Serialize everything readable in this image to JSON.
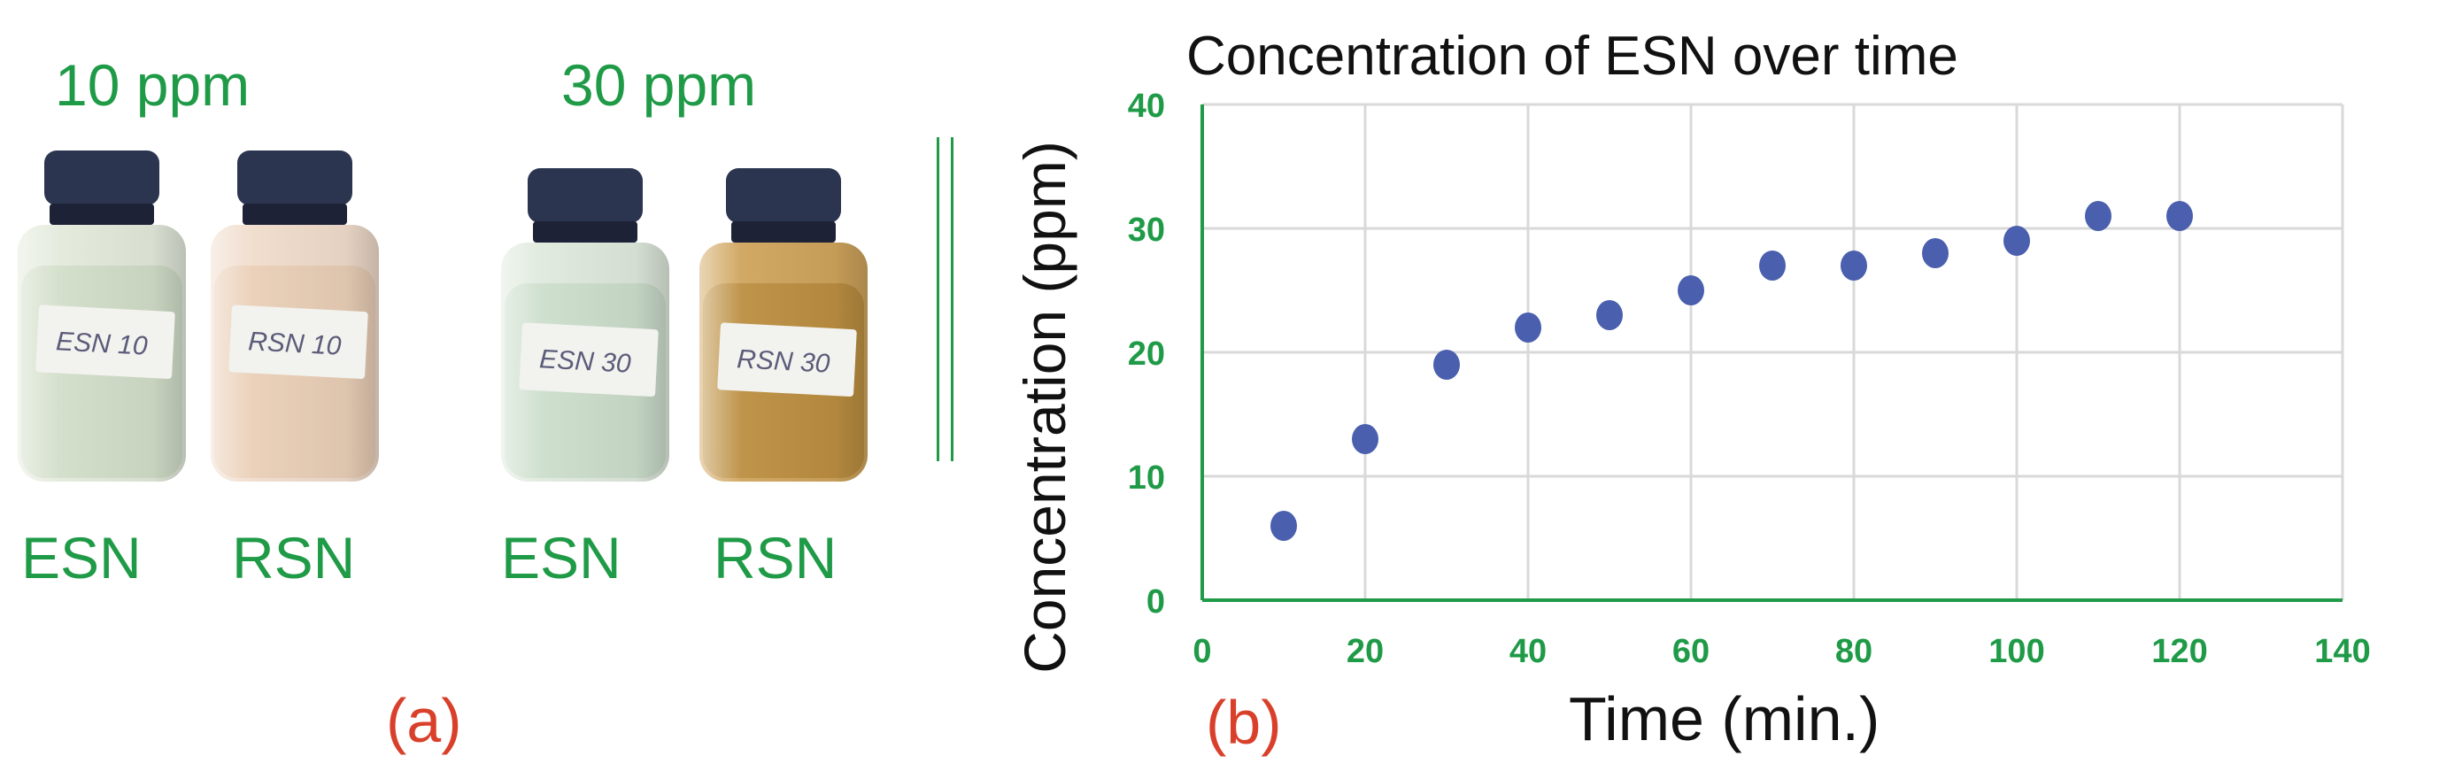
{
  "photo_panel": {
    "groups": [
      {
        "heading": "10 ppm",
        "vials": [
          {
            "name": "ESN",
            "label_text": "ESN 10",
            "liquid": "#cfdcc6",
            "tint": "#e3eadb"
          },
          {
            "name": "RSN",
            "label_text": "RSN 10",
            "liquid": "#e9cdb4",
            "tint": "#f0dccb"
          }
        ]
      },
      {
        "heading": "30 ppm",
        "vials": [
          {
            "name": "ESN",
            "label_text": "ESN 30",
            "liquid": "#c9dcc9",
            "tint": "#dfe9dc"
          },
          {
            "name": "RSN",
            "label_text": "RSN 30",
            "liquid": "#b98c3c",
            "tint": "#cfa45c"
          }
        ]
      }
    ],
    "panel_label": "(a)"
  },
  "chart_panel_label": "(b)",
  "colors": {
    "green": "#1f9a47",
    "red": "#d9402b",
    "marker": "#4a5fad",
    "cap": "#2c3550",
    "grid": "#d9d9d9"
  },
  "chart_data": {
    "type": "scatter",
    "title": "Concentration of ESN over time",
    "xlabel": "Time (min.)",
    "ylabel": "Concentration (ppm)",
    "x": [
      10,
      20,
      30,
      40,
      50,
      60,
      70,
      80,
      90,
      100,
      110,
      120
    ],
    "y": [
      6,
      13,
      19,
      22,
      23,
      25,
      27,
      27,
      28,
      29,
      31,
      31
    ],
    "xlim": [
      0,
      140
    ],
    "ylim": [
      0,
      40
    ],
    "xticks": [
      0,
      20,
      40,
      60,
      80,
      100,
      120,
      140
    ],
    "yticks": [
      0,
      10,
      20,
      30,
      40
    ],
    "grid": true
  }
}
